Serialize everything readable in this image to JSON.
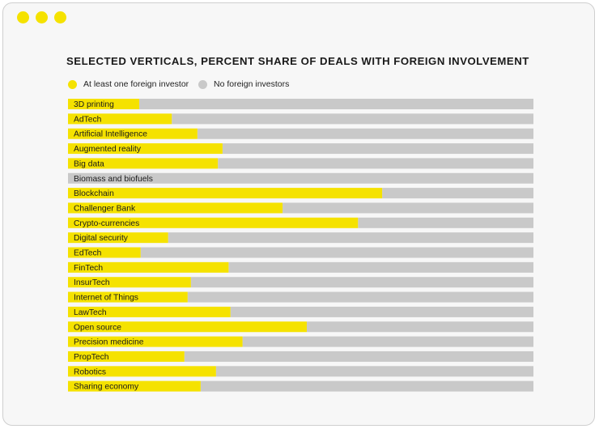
{
  "window": {
    "dots": [
      {
        "name": "window-dot-1",
        "color": "#f5e200"
      },
      {
        "name": "window-dot-2",
        "color": "#f5e200"
      },
      {
        "name": "window-dot-3",
        "color": "#f5e200"
      }
    ]
  },
  "colors": {
    "foreign": "#f5e200",
    "no_foreign": "#c9c9c9",
    "background": "#f7f7f7"
  },
  "chart_data": {
    "type": "bar",
    "orientation": "horizontal",
    "stacked": true,
    "title": "SELECTED VERTICALS, PERCENT SHARE OF DEALS WITH FOREIGN INVOLVEMENT",
    "legend": {
      "placement": "top-left",
      "items": [
        {
          "label": "At least one foreign investor",
          "color": "#f5e200"
        },
        {
          "label": "No foreign investors",
          "color": "#c9c9c9"
        }
      ]
    },
    "xlim": [
      0,
      100
    ],
    "grid": false,
    "categories": [
      "3D printing",
      "AdTech",
      "Artificial Intelligence",
      "Augmented reality",
      "Big data",
      "Biomass and biofuels",
      "Blockchain",
      "Challenger Bank",
      "Crypto-currencies",
      "Digital security",
      "EdTech",
      "FinTech",
      "InsurTech",
      "Internet of Things",
      "LawTech",
      "Open source",
      "Precision medicine",
      "PropTech",
      "Robotics",
      "Sharing economy"
    ],
    "series": [
      {
        "name": "At least one foreign investor",
        "values": [
          15.3,
          22.3,
          27.8,
          33.2,
          32.2,
          0,
          67.5,
          46.1,
          62.3,
          21.5,
          15.6,
          34.5,
          26.4,
          25.7,
          34.9,
          51.3,
          37.5,
          25.0,
          31.8,
          28.5
        ]
      },
      {
        "name": "No foreign investors",
        "values": [
          84.7,
          77.7,
          72.2,
          66.8,
          67.8,
          100,
          32.5,
          53.9,
          37.7,
          78.5,
          84.4,
          65.5,
          73.6,
          74.3,
          65.1,
          48.7,
          62.5,
          75.0,
          68.2,
          71.5
        ]
      }
    ]
  }
}
